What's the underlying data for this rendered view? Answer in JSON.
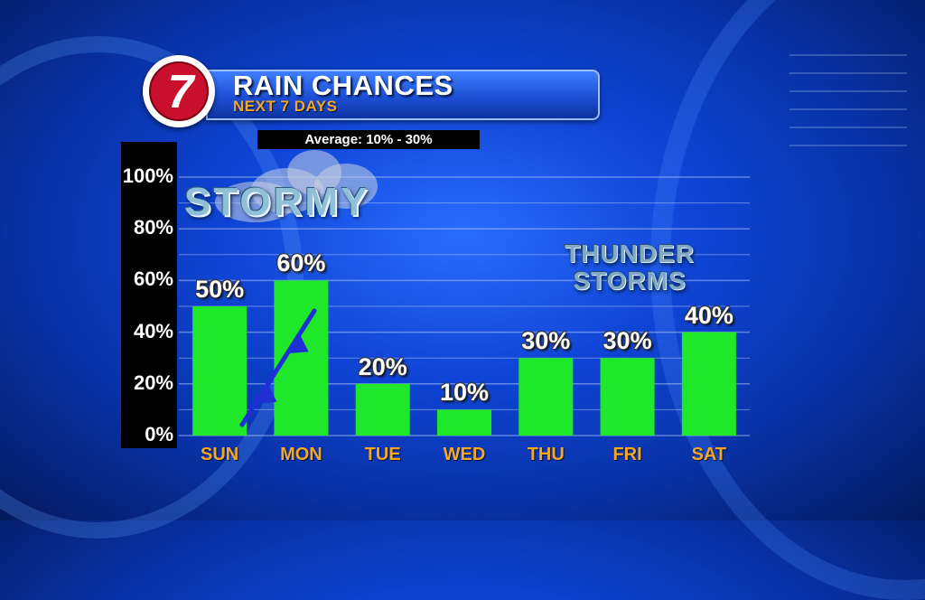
{
  "header": {
    "title": "RAIN CHANCES",
    "subtitle": "NEXT 7 DAYS",
    "logo_text": "7",
    "average_text": "Average: 10% - 30%"
  },
  "overlays": {
    "stormy_text": "STORMY",
    "thunder_line1": "THUNDER",
    "thunder_line2": "STORMS"
  },
  "colors": {
    "bar": "#1fe82a",
    "day_label": "#f5a623",
    "front_line": "#1f2fd6"
  },
  "chart_data": {
    "type": "bar",
    "title": "RAIN CHANCES",
    "subtitle": "NEXT 7 DAYS",
    "categories": [
      "SUN",
      "MON",
      "TUE",
      "WED",
      "THU",
      "FRI",
      "SAT"
    ],
    "values": [
      50,
      60,
      20,
      10,
      30,
      30,
      40
    ],
    "value_labels": [
      "50%",
      "60%",
      "20%",
      "10%",
      "30%",
      "30%",
      "40%"
    ],
    "ylim": [
      0,
      100
    ],
    "yticks": [
      "0%",
      "20%",
      "40%",
      "60%",
      "80%",
      "100%"
    ],
    "grid": true,
    "xlabel": "",
    "ylabel": ""
  }
}
